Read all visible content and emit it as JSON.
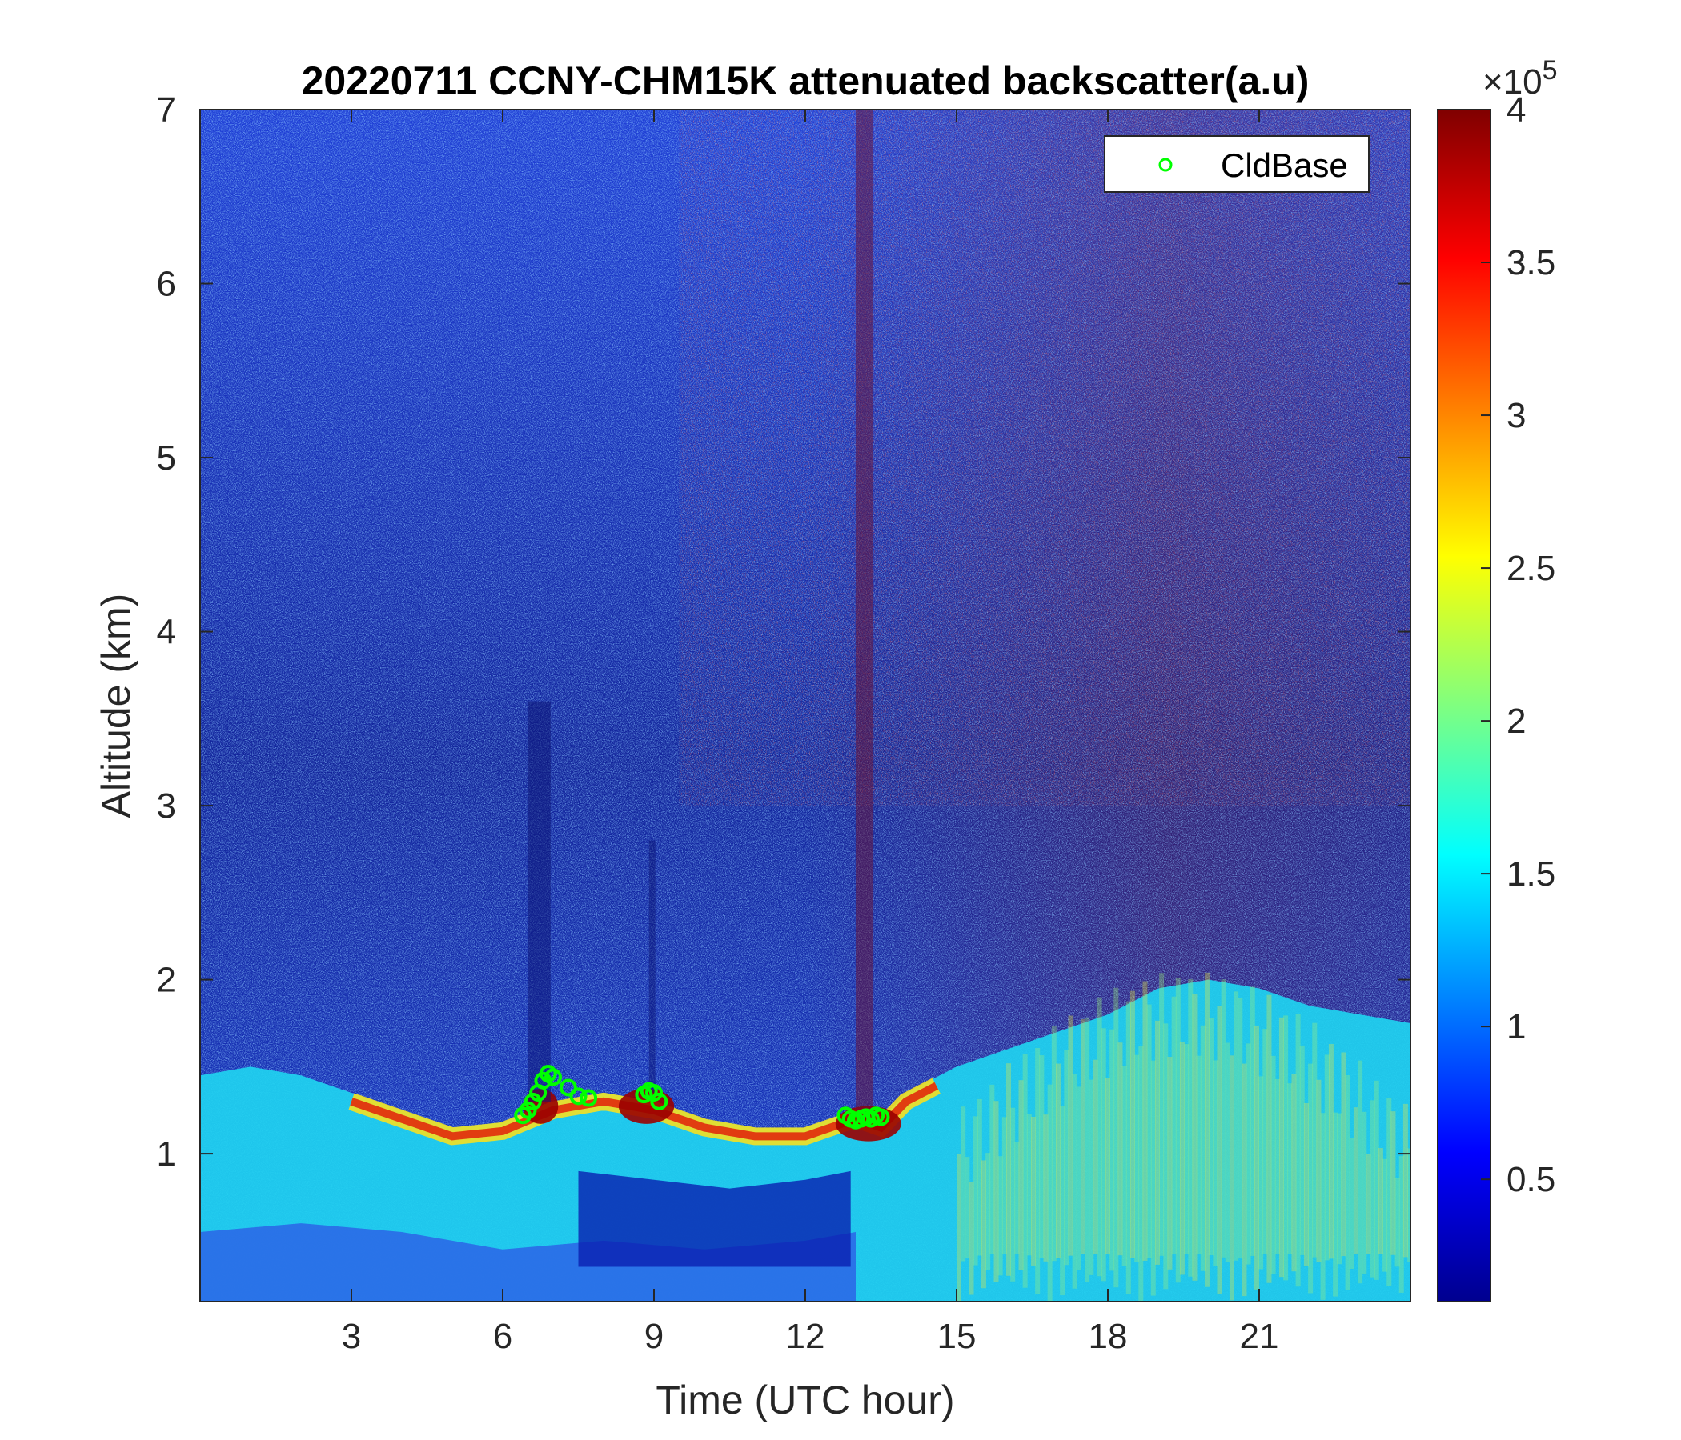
{
  "chart_data": {
    "type": "heatmap",
    "title": "20220711 CCNY-CHM15K attenuated backscatter(a.u)",
    "xlabel": "Time (UTC hour)",
    "ylabel": "Altitude (km)",
    "xlim": [
      0,
      24
    ],
    "ylim": [
      0.15,
      7
    ],
    "xticks": [
      3,
      6,
      9,
      12,
      15,
      18,
      21
    ],
    "xtick_labels": [
      "3",
      "6",
      "9",
      "12",
      "15",
      "18",
      "21"
    ],
    "yticks": [
      1,
      2,
      3,
      4,
      5,
      6,
      7
    ],
    "ytick_labels": [
      "1",
      "2",
      "3",
      "4",
      "5",
      "6",
      "7"
    ],
    "colormap": "jet",
    "colorbar": {
      "clim": [
        0.1,
        4
      ],
      "ticks": [
        0.5,
        1,
        1.5,
        2,
        2.5,
        3,
        3.5,
        4
      ],
      "tick_labels": [
        "0.5",
        "1",
        "1.5",
        "2",
        "2.5",
        "3",
        "3.5",
        "4"
      ],
      "exponent_prefix": "×10",
      "exponent": "5"
    },
    "legend": {
      "placement": "top-right",
      "entries": [
        {
          "label": "CldBase",
          "marker": "circle",
          "color": "#00ff00"
        }
      ]
    },
    "boundary_layer": {
      "time": [
        0,
        1,
        2,
        3,
        4,
        5,
        6,
        7,
        8,
        9,
        10,
        11,
        12,
        13,
        13.5,
        14,
        15,
        16,
        17,
        18,
        19,
        20,
        21,
        22,
        23,
        24
      ],
      "top_km": [
        1.45,
        1.5,
        1.45,
        1.35,
        1.25,
        1.15,
        1.18,
        1.3,
        1.35,
        1.3,
        1.2,
        1.15,
        1.15,
        1.25,
        1.2,
        1.35,
        1.5,
        1.6,
        1.7,
        1.8,
        1.95,
        2.0,
        1.95,
        1.85,
        1.8,
        1.75
      ]
    },
    "cloud_base": {
      "time": [
        6.4,
        6.5,
        6.6,
        6.7,
        6.8,
        6.9,
        7.0,
        7.3,
        7.5,
        7.7,
        8.8,
        8.9,
        9.0,
        9.1,
        12.8,
        12.9,
        13.0,
        13.1,
        13.2,
        13.3,
        13.4,
        13.5
      ],
      "altitude_km": [
        1.22,
        1.25,
        1.3,
        1.35,
        1.42,
        1.46,
        1.44,
        1.38,
        1.33,
        1.32,
        1.34,
        1.36,
        1.35,
        1.3,
        1.22,
        1.2,
        1.19,
        1.2,
        1.21,
        1.2,
        1.22,
        1.21
      ],
      "color": "#00ff00"
    }
  }
}
